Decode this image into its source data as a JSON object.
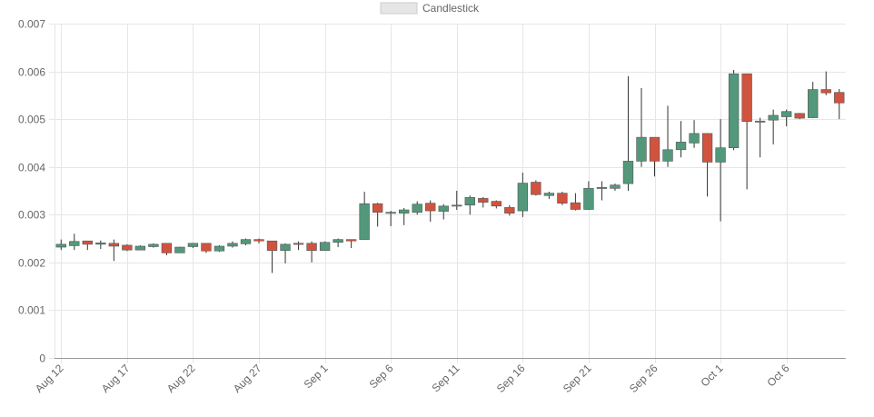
{
  "chart_data": {
    "type": "candlestick",
    "legend": {
      "label": "Candlestick",
      "placement": "top-center"
    },
    "colors": {
      "up": "#53987a",
      "down": "#d0533f",
      "wick": "#333333",
      "grid": "#e6e6e6",
      "axis": "#999999",
      "text": "#666666"
    },
    "grid": true,
    "ylim": [
      0,
      0.007
    ],
    "yticks": [
      {
        "value": 0,
        "label": "0"
      },
      {
        "value": 0.001,
        "label": "0.001"
      },
      {
        "value": 0.002,
        "label": "0.002"
      },
      {
        "value": 0.003,
        "label": "0.003"
      },
      {
        "value": 0.004,
        "label": "0.004"
      },
      {
        "value": 0.005,
        "label": "0.005"
      },
      {
        "value": 0.006,
        "label": "0.006"
      },
      {
        "value": 0.007,
        "label": "0.007"
      }
    ],
    "xticks": [
      "Aug 12",
      "Aug 17",
      "Aug 22",
      "Aug 27",
      "Sep 1",
      "Sep 6",
      "Sep 11",
      "Sep 16",
      "Sep 21",
      "Sep 26",
      "Oct 1",
      "Oct 6"
    ],
    "candles": [
      {
        "date": "Aug 12",
        "o": 0.00232,
        "h": 0.00248,
        "l": 0.00226,
        "c": 0.00238
      },
      {
        "date": "Aug 13",
        "o": 0.00235,
        "h": 0.0026,
        "l": 0.00226,
        "c": 0.00244
      },
      {
        "date": "Aug 14",
        "o": 0.00245,
        "h": 0.00245,
        "l": 0.00226,
        "c": 0.00238
      },
      {
        "date": "Aug 15",
        "o": 0.00238,
        "h": 0.00246,
        "l": 0.00228,
        "c": 0.00241
      },
      {
        "date": "Aug 16",
        "o": 0.0024,
        "h": 0.00248,
        "l": 0.00203,
        "c": 0.00234
      },
      {
        "date": "Aug 17",
        "o": 0.00236,
        "h": 0.00238,
        "l": 0.00224,
        "c": 0.00226
      },
      {
        "date": "Aug 18",
        "o": 0.00226,
        "h": 0.00236,
        "l": 0.00226,
        "c": 0.00234
      },
      {
        "date": "Aug 19",
        "o": 0.00233,
        "h": 0.0024,
        "l": 0.00231,
        "c": 0.00238
      },
      {
        "date": "Aug 20",
        "o": 0.0024,
        "h": 0.0024,
        "l": 0.00215,
        "c": 0.0022
      },
      {
        "date": "Aug 21",
        "o": 0.0022,
        "h": 0.00233,
        "l": 0.0022,
        "c": 0.00232
      },
      {
        "date": "Aug 22",
        "o": 0.00233,
        "h": 0.00241,
        "l": 0.0023,
        "c": 0.0024
      },
      {
        "date": "Aug 23",
        "o": 0.0024,
        "h": 0.0024,
        "l": 0.0022,
        "c": 0.00224
      },
      {
        "date": "Aug 24",
        "o": 0.00224,
        "h": 0.00236,
        "l": 0.00222,
        "c": 0.00234
      },
      {
        "date": "Aug 25",
        "o": 0.00234,
        "h": 0.00244,
        "l": 0.00231,
        "c": 0.0024
      },
      {
        "date": "Aug 26",
        "o": 0.00239,
        "h": 0.0025,
        "l": 0.00236,
        "c": 0.00248
      },
      {
        "date": "Aug 27",
        "o": 0.00248,
        "h": 0.0025,
        "l": 0.0024,
        "c": 0.00245
      },
      {
        "date": "Aug 28",
        "o": 0.00245,
        "h": 0.00245,
        "l": 0.00178,
        "c": 0.00225
      },
      {
        "date": "Aug 29",
        "o": 0.00225,
        "h": 0.0024,
        "l": 0.00198,
        "c": 0.00238
      },
      {
        "date": "Aug 30",
        "o": 0.0024,
        "h": 0.00244,
        "l": 0.00226,
        "c": 0.00238
      },
      {
        "date": "Aug 31",
        "o": 0.0024,
        "h": 0.00244,
        "l": 0.002,
        "c": 0.00225
      },
      {
        "date": "Sep 1",
        "o": 0.00225,
        "h": 0.00244,
        "l": 0.00225,
        "c": 0.00242
      },
      {
        "date": "Sep 2",
        "o": 0.00242,
        "h": 0.0025,
        "l": 0.00232,
        "c": 0.00248
      },
      {
        "date": "Sep 3",
        "o": 0.00248,
        "h": 0.00248,
        "l": 0.0023,
        "c": 0.00245
      },
      {
        "date": "Sep 4",
        "o": 0.00248,
        "h": 0.00348,
        "l": 0.00248,
        "c": 0.00323
      },
      {
        "date": "Sep 5",
        "o": 0.00323,
        "h": 0.00325,
        "l": 0.00275,
        "c": 0.00305
      },
      {
        "date": "Sep 6",
        "o": 0.00303,
        "h": 0.00308,
        "l": 0.00276,
        "c": 0.00305
      },
      {
        "date": "Sep 7",
        "o": 0.00303,
        "h": 0.00314,
        "l": 0.00278,
        "c": 0.0031
      },
      {
        "date": "Sep 8",
        "o": 0.00305,
        "h": 0.00328,
        "l": 0.003,
        "c": 0.00322
      },
      {
        "date": "Sep 9",
        "o": 0.00324,
        "h": 0.0033,
        "l": 0.00285,
        "c": 0.00308
      },
      {
        "date": "Sep 10",
        "o": 0.00307,
        "h": 0.00322,
        "l": 0.0029,
        "c": 0.00318
      },
      {
        "date": "Sep 11",
        "o": 0.00318,
        "h": 0.0035,
        "l": 0.0031,
        "c": 0.0032
      },
      {
        "date": "Sep 12",
        "o": 0.0032,
        "h": 0.0034,
        "l": 0.003,
        "c": 0.00336
      },
      {
        "date": "Sep 13",
        "o": 0.00334,
        "h": 0.00337,
        "l": 0.00315,
        "c": 0.00326
      },
      {
        "date": "Sep 14",
        "o": 0.00328,
        "h": 0.0033,
        "l": 0.00313,
        "c": 0.00318
      },
      {
        "date": "Sep 15",
        "o": 0.00315,
        "h": 0.0032,
        "l": 0.00298,
        "c": 0.00303
      },
      {
        "date": "Sep 16",
        "o": 0.00308,
        "h": 0.00388,
        "l": 0.00295,
        "c": 0.00366
      },
      {
        "date": "Sep 17",
        "o": 0.00368,
        "h": 0.00372,
        "l": 0.0034,
        "c": 0.00342
      },
      {
        "date": "Sep 18",
        "o": 0.0034,
        "h": 0.00348,
        "l": 0.00333,
        "c": 0.00345
      },
      {
        "date": "Sep 19",
        "o": 0.00345,
        "h": 0.00348,
        "l": 0.0032,
        "c": 0.00324
      },
      {
        "date": "Sep 20",
        "o": 0.00325,
        "h": 0.00345,
        "l": 0.00309,
        "c": 0.00311
      },
      {
        "date": "Sep 21",
        "o": 0.00311,
        "h": 0.0037,
        "l": 0.0031,
        "c": 0.00355
      },
      {
        "date": "Sep 22",
        "o": 0.00355,
        "h": 0.0037,
        "l": 0.0033,
        "c": 0.00357
      },
      {
        "date": "Sep 23",
        "o": 0.00355,
        "h": 0.00365,
        "l": 0.0035,
        "c": 0.00362
      },
      {
        "date": "Sep 24",
        "o": 0.00365,
        "h": 0.0059,
        "l": 0.0035,
        "c": 0.00412
      },
      {
        "date": "Sep 25",
        "o": 0.00412,
        "h": 0.00565,
        "l": 0.004,
        "c": 0.00462
      },
      {
        "date": "Sep 26",
        "o": 0.00462,
        "h": 0.00462,
        "l": 0.0038,
        "c": 0.00412
      },
      {
        "date": "Sep 27",
        "o": 0.00412,
        "h": 0.00528,
        "l": 0.004,
        "c": 0.00436
      },
      {
        "date": "Sep 28",
        "o": 0.00436,
        "h": 0.00496,
        "l": 0.0042,
        "c": 0.00452
      },
      {
        "date": "Sep 29",
        "o": 0.0045,
        "h": 0.00498,
        "l": 0.0044,
        "c": 0.0047
      },
      {
        "date": "Sep 30",
        "o": 0.0047,
        "h": 0.0047,
        "l": 0.00338,
        "c": 0.0041
      },
      {
        "date": "Oct 1",
        "o": 0.0041,
        "h": 0.005,
        "l": 0.00286,
        "c": 0.0044
      },
      {
        "date": "Oct 2",
        "o": 0.0044,
        "h": 0.00603,
        "l": 0.00435,
        "c": 0.00595
      },
      {
        "date": "Oct 3",
        "o": 0.00595,
        "h": 0.00595,
        "l": 0.00353,
        "c": 0.00495
      },
      {
        "date": "Oct 4",
        "o": 0.00495,
        "h": 0.00503,
        "l": 0.0042,
        "c": 0.00496
      },
      {
        "date": "Oct 5",
        "o": 0.00498,
        "h": 0.0052,
        "l": 0.00447,
        "c": 0.00508
      },
      {
        "date": "Oct 6",
        "o": 0.00505,
        "h": 0.0052,
        "l": 0.00485,
        "c": 0.00516
      },
      {
        "date": "Oct 7",
        "o": 0.00512,
        "h": 0.00513,
        "l": 0.005,
        "c": 0.00502
      },
      {
        "date": "Oct 8",
        "o": 0.00503,
        "h": 0.00578,
        "l": 0.00502,
        "c": 0.00562
      },
      {
        "date": "Oct 9",
        "o": 0.00562,
        "h": 0.006,
        "l": 0.0055,
        "c": 0.00555
      },
      {
        "date": "Oct 10",
        "o": 0.00556,
        "h": 0.00563,
        "l": 0.005,
        "c": 0.00534
      }
    ]
  }
}
